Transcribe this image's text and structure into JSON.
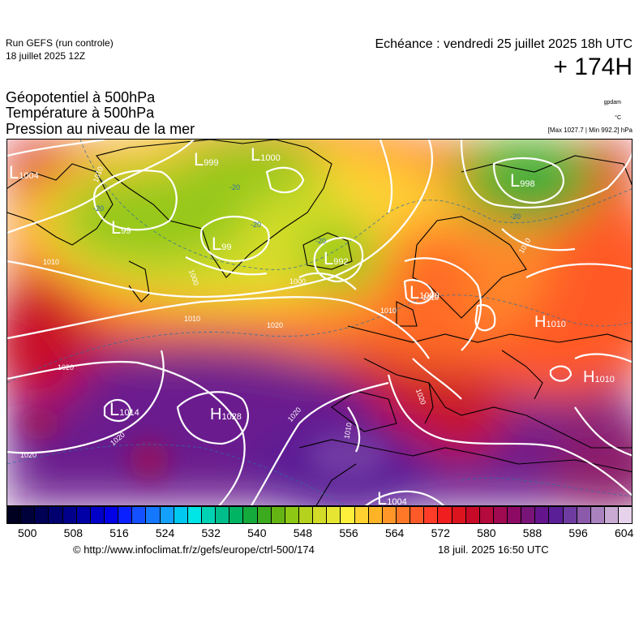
{
  "header": {
    "run_label": "Run GEFS (run controle)",
    "run_date": "18 juillet 2025 12Z",
    "echeance": "Echéance : vendredi 25 juillet 2025 18h UTC",
    "lead_time": "+ 174H"
  },
  "fields": {
    "line1": "Géopotentiel à 500hPa",
    "line2": "Température à 500hPa",
    "line3": "Pression au niveau de la mer"
  },
  "units": {
    "gpdam": "gpdam",
    "celsius": "°C",
    "maxmin": "[Max 1027.7 | Min 992.2] hPa"
  },
  "map_labels": {
    "lows": [
      {
        "letter": "L",
        "value": "1004"
      },
      {
        "letter": "L",
        "value": "999"
      },
      {
        "letter": "L",
        "value": "1000"
      },
      {
        "letter": "L",
        "value": "998"
      },
      {
        "letter": "L",
        "value": "99"
      },
      {
        "letter": "L",
        "value": "99"
      },
      {
        "letter": "L",
        "value": "992"
      },
      {
        "letter": "L",
        "value": "1000"
      },
      {
        "letter": "L",
        "value": "1014"
      },
      {
        "letter": "L",
        "value": "1004"
      }
    ],
    "highs": [
      {
        "letter": "H",
        "value": "1010"
      },
      {
        "letter": "H",
        "value": "1010"
      },
      {
        "letter": "H",
        "value": "1028"
      }
    ],
    "isobars": [
      "1010",
      "1010",
      "1000",
      "1000",
      "1010",
      "1010",
      "1020",
      "1020",
      "1020",
      "1020",
      "1010",
      "1010",
      "1020",
      "1020",
      "1010"
    ],
    "isotherms": [
      "-20",
      "-20",
      "-20",
      "-20",
      "-20"
    ]
  },
  "colorbar": {
    "colors": [
      "#000020",
      "#00003a",
      "#000055",
      "#00006e",
      "#00008a",
      "#0000a6",
      "#0000c8",
      "#0000e6",
      "#0a20ff",
      "#1450ff",
      "#1478ff",
      "#14a0ff",
      "#00c8f0",
      "#00e6e6",
      "#00d2b4",
      "#00be8c",
      "#00b464",
      "#14aa3c",
      "#3caa1e",
      "#64b414",
      "#8cc814",
      "#b4d21e",
      "#d2dc28",
      "#e6e632",
      "#fff03c",
      "#ffd232",
      "#ffb428",
      "#ff9628",
      "#ff7828",
      "#ff5a28",
      "#ff3c28",
      "#f01e1e",
      "#dc141e",
      "#c80a28",
      "#b40a3c",
      "#a00a50",
      "#8c0a64",
      "#781478",
      "#64148c",
      "#5a1e96",
      "#6e3ca0",
      "#8c5aaa",
      "#aa82be",
      "#c8aad2",
      "#e6d2ea"
    ],
    "ticks": [
      "500",
      "508",
      "516",
      "524",
      "532",
      "540",
      "548",
      "556",
      "564",
      "572",
      "580",
      "588",
      "596",
      "604"
    ]
  },
  "footer": {
    "copyright": "© http://www.infoclimat.fr/z/gefs/europe/ctrl-500/174",
    "timestamp": "18 juil. 2025 16:50 UTC"
  }
}
